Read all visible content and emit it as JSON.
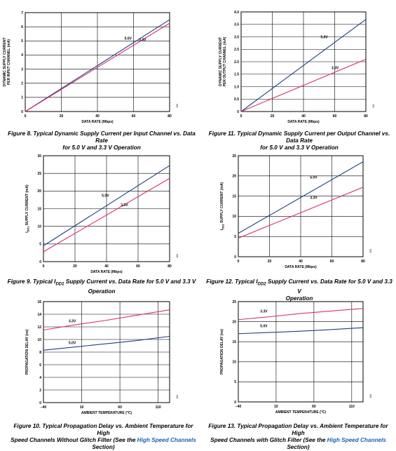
{
  "colors": {
    "series_5v": "#1f3f7f",
    "series_3v": "#d6336c",
    "link": "#1f5fb4"
  },
  "chart_data": [
    {
      "id": "fig8",
      "type": "line",
      "xlabel": "DATA RATE (Mbps)",
      "ylabel_lines": [
        "DYNAMIC SUPPLY CURRENT",
        "PER INPUT CHANNEL (mA)"
      ],
      "xlim": [
        0,
        80
      ],
      "ylim": [
        0,
        7
      ],
      "xticks": [
        0,
        20,
        40,
        60,
        80
      ],
      "yticks": [
        0,
        1,
        2,
        3,
        4,
        5,
        6,
        7
      ],
      "grid": true,
      "fig_id": "100",
      "series": [
        {
          "name": "5.0V",
          "x": [
            0,
            80
          ],
          "y": [
            0,
            6.5
          ],
          "label_at": [
            55,
            5.1
          ]
        },
        {
          "name": "3.3V",
          "x": [
            0,
            80
          ],
          "y": [
            0,
            6.25
          ],
          "label_at": [
            63,
            5.0
          ]
        }
      ],
      "caption": [
        "Figure 8. Typical Dynamic Supply Current per Input Channel vs. Data Rate",
        "for 5.0 V and 3.3 V Operation"
      ]
    },
    {
      "id": "fig11",
      "type": "line",
      "xlabel": "DATA RATE (Mbps)",
      "ylabel_lines": [
        "DYNAMIC SUPPLY CURRENT",
        "PER OUTPUT CHANNEL (mA)"
      ],
      "xlim": [
        0,
        80
      ],
      "ylim": [
        0,
        4.0
      ],
      "xticks": [
        0,
        20,
        40,
        60,
        80
      ],
      "yticks": [
        0,
        0.5,
        1.0,
        1.5,
        2.0,
        2.5,
        3.0,
        3.5,
        4.0
      ],
      "ytick_labels": [
        "0",
        "0.5",
        "1.0",
        "1.5",
        "2.0",
        "2.5",
        "3.0",
        "3.5",
        "4.0"
      ],
      "grid": true,
      "fig_id": "101",
      "series": [
        {
          "name": "5.0V",
          "x": [
            0,
            80
          ],
          "y": [
            0,
            3.7
          ],
          "label_at": [
            51,
            2.95
          ]
        },
        {
          "name": "3.3V",
          "x": [
            0,
            80
          ],
          "y": [
            0,
            2.1
          ],
          "label_at": [
            58,
            1.7
          ]
        }
      ],
      "caption": [
        "Figure 11. Typical Dynamic Supply Current per Output Channel vs. Data Rate",
        "for 5.0 V and 3.3 V Operation"
      ]
    },
    {
      "id": "fig9",
      "type": "line",
      "xlabel": "DATA RATE (Mbps)",
      "ylabel_main": "I",
      "ylabel_sub": "DD1",
      "ylabel_rest": " SUPPLY CURRENT (mA)",
      "xlim": [
        0,
        80
      ],
      "ylim": [
        0,
        30
      ],
      "xticks": [
        0,
        20,
        40,
        60,
        80
      ],
      "yticks": [
        0,
        5,
        10,
        15,
        20,
        25,
        30
      ],
      "grid": true,
      "fig_id": "102",
      "series": [
        {
          "name": "5.0V",
          "x": [
            0,
            80
          ],
          "y": [
            4.5,
            27.2
          ],
          "label_at": [
            37,
            18.4
          ]
        },
        {
          "name": "3.3V",
          "x": [
            0,
            80
          ],
          "y": [
            2.8,
            23.6
          ],
          "label_at": [
            49,
            15.7
          ]
        }
      ],
      "caption_parts": [
        "Figure 9. Typical I",
        "DD1",
        " Supply Current vs. Data Rate for 5.0 V and 3.3 V"
      ],
      "caption_line2": "Operation"
    },
    {
      "id": "fig12",
      "type": "line",
      "xlabel": "DATA RATE (Mbps)",
      "ylabel_main": "I",
      "ylabel_sub": "DD2",
      "ylabel_rest": " SUPPLY CURRENT (mA)",
      "xlim": [
        0,
        80
      ],
      "ylim": [
        0,
        25
      ],
      "xticks": [
        0,
        20,
        40,
        60,
        80
      ],
      "yticks": [
        0,
        5,
        10,
        15,
        20,
        25
      ],
      "grid": true,
      "fig_id": "103",
      "series": [
        {
          "name": "5.0V",
          "x": [
            0,
            80
          ],
          "y": [
            5.8,
            23.5
          ],
          "label_at": [
            46,
            19.4
          ]
        },
        {
          "name": "3.3V",
          "x": [
            0,
            80
          ],
          "y": [
            4.6,
            17.2
          ],
          "label_at": [
            46,
            14.3
          ]
        }
      ],
      "caption_parts": [
        "Figure 12. Typical I",
        "DD2",
        " Supply Current vs. Data Rate for 5.0 V and 3.3 V"
      ],
      "caption_line2": "Operation"
    },
    {
      "id": "fig10",
      "type": "line",
      "xlabel": "AMBIENT TEMPERATURE (°C)",
      "ylabel_lines": [
        "PROPAGATION DELAY (ns)"
      ],
      "xlim": [
        -40,
        125
      ],
      "ylim": [
        0,
        16
      ],
      "xticks": [
        -40,
        10,
        60,
        110
      ],
      "xtick_labels": [
        "–40",
        "10",
        "60",
        "110"
      ],
      "yticks": [
        0,
        2,
        4,
        6,
        8,
        10,
        12,
        14,
        16
      ],
      "xgrid": [
        -40,
        10,
        60,
        110,
        125
      ],
      "grid": true,
      "fig_id": "104",
      "series": [
        {
          "name": "5.0V",
          "x": [
            -40,
            0,
            40,
            80,
            125
          ],
          "y": [
            8.3,
            8.8,
            9.3,
            9.8,
            10.5
          ],
          "label_at": [
            -7,
            9.3
          ]
        },
        {
          "name": "3.3V",
          "x": [
            -40,
            0,
            40,
            80,
            125
          ],
          "y": [
            11.5,
            12.3,
            13.0,
            13.8,
            14.7
          ],
          "label_at": [
            -7,
            12.7
          ]
        }
      ],
      "caption_lines": [
        "Figure 10. Typical Propagation Delay vs. Ambient Temperature for High"
      ],
      "caption_last_pre": "Speed Channels Without Glitch Filter (See the ",
      "caption_link": "High Speed Channels",
      "caption_last_post": " Section)"
    },
    {
      "id": "fig13",
      "type": "line",
      "xlabel": "AMBIENT TEMPERATURE (°C)",
      "ylabel_lines": [
        "PROPAGATION DELAY (ns)"
      ],
      "xlim": [
        -40,
        125
      ],
      "ylim": [
        0,
        25
      ],
      "xticks": [
        -40,
        10,
        60,
        110
      ],
      "xtick_labels": [
        "–40",
        "10",
        "60",
        "110"
      ],
      "yticks": [
        0,
        5,
        10,
        15,
        20,
        25
      ],
      "xgrid": [
        -40,
        10,
        60,
        110,
        125
      ],
      "grid": true,
      "fig_id": "105",
      "series": [
        {
          "name": "5.0V",
          "x": [
            -40,
            0,
            40,
            80,
            125
          ],
          "y": [
            17.0,
            17.3,
            17.6,
            18.0,
            18.5
          ],
          "label_at": [
            -11,
            18.6
          ]
        },
        {
          "name": "3.3V",
          "x": [
            -40,
            0,
            40,
            80,
            125
          ],
          "y": [
            20.5,
            21.2,
            22.0,
            22.6,
            23.3
          ],
          "label_at": [
            -11,
            22.3
          ]
        }
      ],
      "caption_lines": [
        "Figure 13. Typical Propagation Delay vs. Ambient Temperature for High"
      ],
      "caption_last_pre": "Speed Channels with Glitch Filter (See the ",
      "caption_link": "High Speed Channels",
      "caption_last_post": " Section)"
    }
  ]
}
